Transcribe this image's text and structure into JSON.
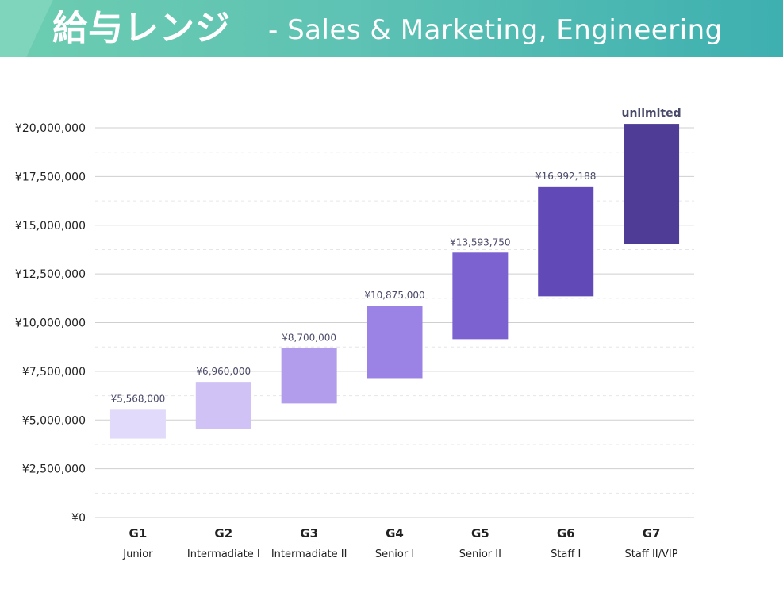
{
  "header": {
    "title_jp": "給与レンジ",
    "title_sub": "- Sales & Marketing, Engineering"
  },
  "colors": {
    "gridline": "#cfcfcf",
    "gridline_minor": "#e6e6e6",
    "label_text": "#4a4a6a",
    "axis_text": "#222222"
  },
  "chart_data": {
    "type": "bar",
    "subtype": "floating-range",
    "title": "給与レンジ - Sales & Marketing, Engineering",
    "ylim": [
      0,
      20000000
    ],
    "yticks": [
      0,
      2500000,
      5000000,
      7500000,
      10000000,
      12500000,
      15000000,
      17500000,
      20000000
    ],
    "ytick_labels": [
      "¥0",
      "¥2,500,000",
      "¥5,000,000",
      "¥7,500,000",
      "¥10,000,000",
      "¥12,500,000",
      "¥15,000,000",
      "¥17,500,000",
      "¥20,000,000"
    ],
    "grid": true,
    "legend": "none",
    "categories": [
      "G1",
      "G2",
      "G3",
      "G4",
      "G5",
      "G6",
      "G7"
    ],
    "sublabels": [
      "Junior",
      "Intermadiate I",
      "Intermadiate II",
      "Senior I",
      "Senior II",
      "Staff I",
      "Staff II/VIP"
    ],
    "ranges": [
      {
        "low": 4050000,
        "high": 5568000,
        "label": "¥5,568,000",
        "color": "#e2dafa"
      },
      {
        "low": 4550000,
        "high": 6960000,
        "label": "¥6,960,000",
        "color": "#d0c2f4"
      },
      {
        "low": 5850000,
        "high": 8700000,
        "label": "¥8,700,000",
        "color": "#b29dec"
      },
      {
        "low": 7150000,
        "high": 10875000,
        "label": "¥10,875,000",
        "color": "#9a83e4"
      },
      {
        "low": 9150000,
        "high": 13593750,
        "label": "¥13,593,750",
        "color": "#7b62d0"
      },
      {
        "low": 11350000,
        "high": 16992188,
        "label": "¥16,992,188",
        "color": "#6149b8"
      },
      {
        "low": 14050000,
        "high": 20200000,
        "label": "unlimited",
        "color": "#4e3c96"
      }
    ]
  }
}
